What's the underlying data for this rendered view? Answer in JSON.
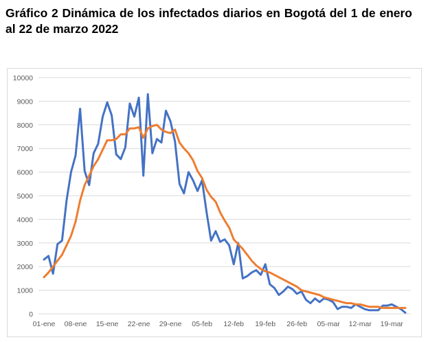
{
  "page": {
    "title": "Gráfico 2 Dinámica de los infectados diarios en Bogotá del 1 de enero al 22 de marzo 2022"
  },
  "chart_data": {
    "type": "line",
    "title": "",
    "xlabel": "",
    "ylabel": "",
    "ylim": [
      0,
      10000
    ],
    "yticks": [
      0,
      1000,
      2000,
      3000,
      4000,
      5000,
      6000,
      7000,
      8000,
      9000,
      10000
    ],
    "x_start": "01-ene",
    "x_end": "22-mar",
    "xtick_labels": [
      "01-ene",
      "08-ene",
      "15-ene",
      "22-ene",
      "29-ene",
      "05-feb",
      "12-feb",
      "19-feb",
      "26-feb",
      "05-mar",
      "12-mar",
      "19-mar"
    ],
    "grid": "horizontal",
    "legend": "none",
    "series": [
      {
        "color": "#4472c4",
        "values": [
          2300,
          2450,
          1700,
          2950,
          3100,
          4800,
          6000,
          6700,
          8680,
          6050,
          5450,
          6800,
          7200,
          8350,
          8950,
          8400,
          6750,
          6550,
          7050,
          8900,
          8350,
          9150,
          5850,
          9300,
          6800,
          7400,
          7250,
          8600,
          8150,
          7300,
          5500,
          5100,
          6000,
          5650,
          5200,
          5650,
          4300,
          3100,
          3500,
          3050,
          3150,
          2900,
          2100,
          3000,
          1500,
          1600,
          1750,
          1850,
          1650,
          2100,
          1250,
          1100,
          800,
          950,
          1150,
          1050,
          850,
          950,
          600,
          450,
          650,
          500,
          650,
          600,
          500,
          200,
          300,
          300,
          250,
          400,
          300,
          200,
          150,
          150,
          150,
          350,
          350,
          400,
          300,
          200,
          50
        ]
      },
      {
        "color": "#ed7d31",
        "values": [
          1550,
          1750,
          2000,
          2250,
          2500,
          2900,
          3300,
          3900,
          4800,
          5450,
          5850,
          6250,
          6550,
          6950,
          7350,
          7350,
          7400,
          7600,
          7600,
          7850,
          7850,
          7900,
          7450,
          7850,
          7950,
          8000,
          7800,
          7700,
          7650,
          7800,
          7250,
          7000,
          6800,
          6500,
          6050,
          5750,
          5250,
          4950,
          4750,
          4300,
          3950,
          3650,
          3150,
          2950,
          2750,
          2500,
          2250,
          2050,
          1900,
          1800,
          1750,
          1650,
          1550,
          1450,
          1350,
          1250,
          1150,
          1000,
          950,
          900,
          850,
          800,
          700,
          650,
          600,
          550,
          500,
          450,
          450,
          400,
          400,
          350,
          300,
          300,
          300,
          250,
          250,
          250,
          250,
          250,
          250
        ]
      }
    ]
  }
}
